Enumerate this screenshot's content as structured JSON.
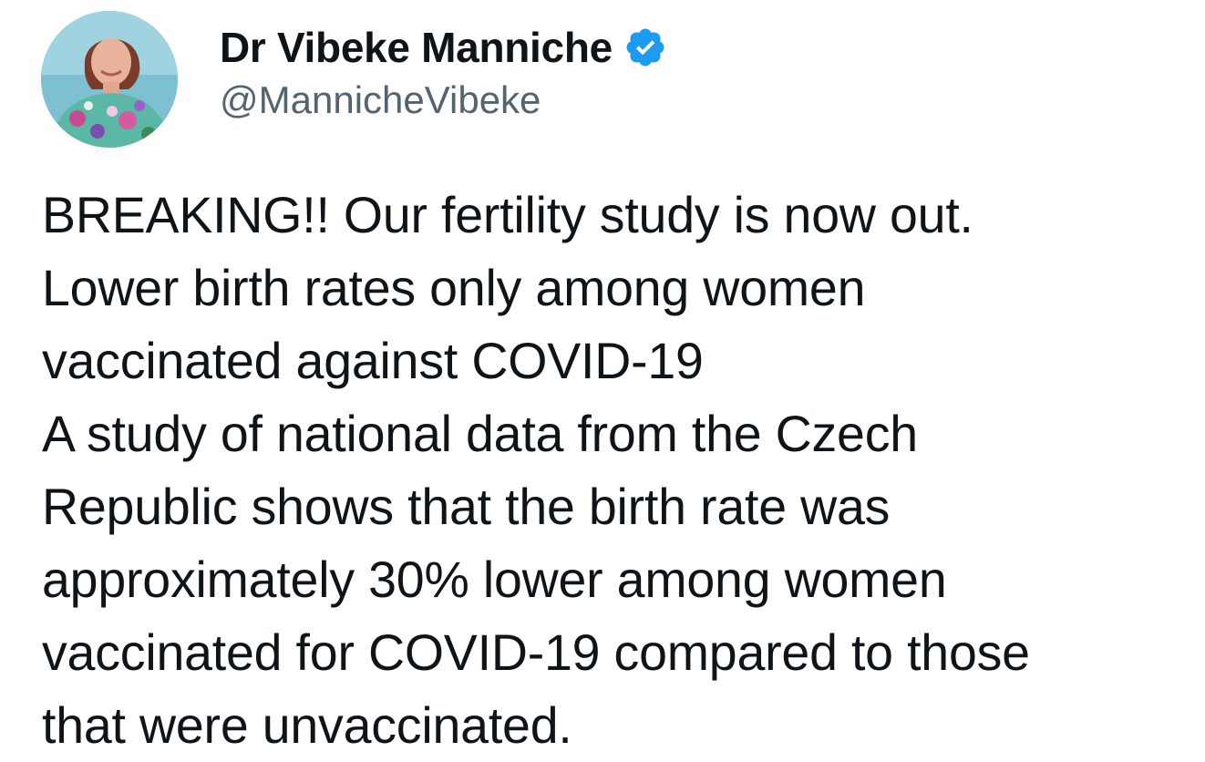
{
  "author": {
    "display_name": "Dr Vibeke Manniche",
    "handle": "@MannicheVibeke",
    "verified": true,
    "verified_color": "#1d9bf0",
    "avatar_icon": "profile-photo"
  },
  "tweet": {
    "lines": [
      "BREAKING!! Our fertility study is now out.",
      "Lower birth rates only among women",
      "vaccinated against COVID-19",
      "A study of national data from the Czech",
      "Republic shows that the birth rate was",
      "approximately 30% lower among women",
      "vaccinated for COVID-19 compared to those",
      "that were unvaccinated."
    ]
  },
  "colors": {
    "text_primary": "#0f1419",
    "text_secondary": "#536471",
    "background": "#ffffff"
  }
}
